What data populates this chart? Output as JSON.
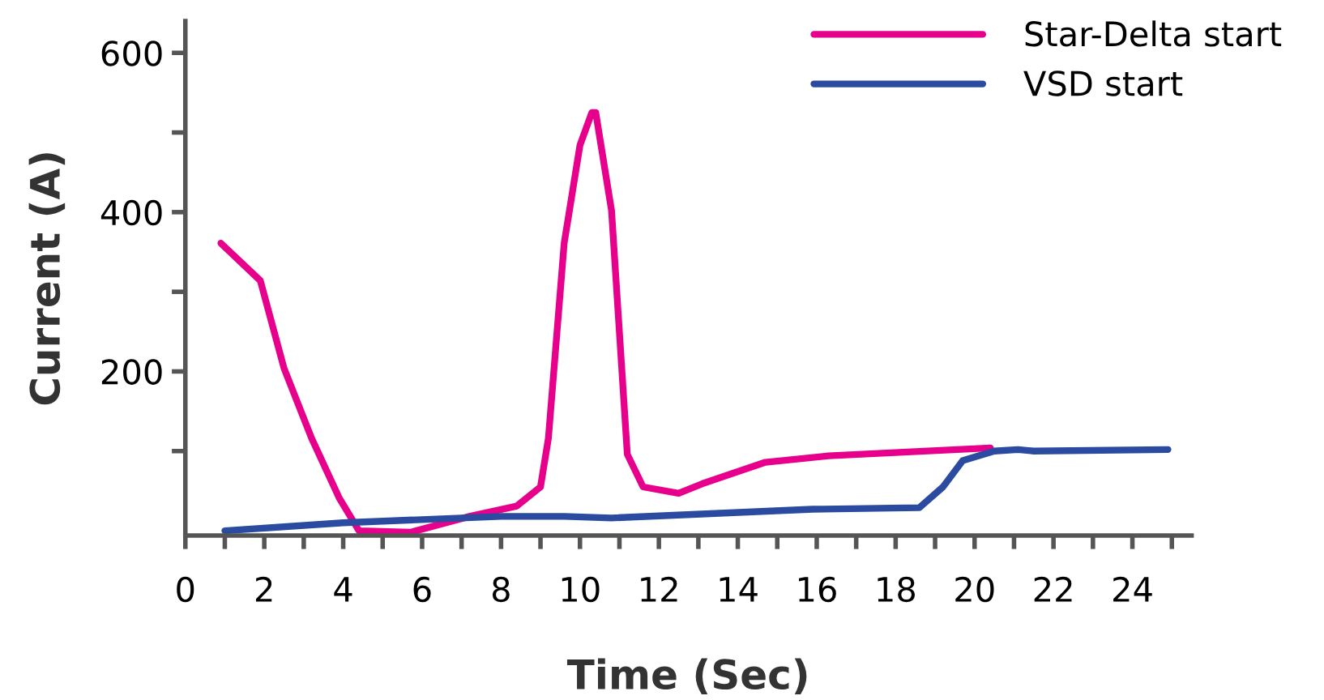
{
  "chart_data": {
    "type": "line",
    "xlabel": "Time (Sec)",
    "ylabel": "Current (A)",
    "xlim": [
      0,
      25.5
    ],
    "ylim": [
      -6,
      640
    ],
    "xticks": [
      0,
      {
        "value": 1,
        "label": null
      },
      2,
      {
        "value": 3,
        "label": null
      },
      4,
      {
        "value": 5,
        "label": null
      },
      6,
      {
        "value": 7,
        "label": null
      },
      8,
      {
        "value": 9,
        "label": null
      },
      10,
      {
        "value": 11,
        "label": null
      },
      12,
      {
        "value": 13,
        "label": null
      },
      14,
      {
        "value": 15,
        "label": null
      },
      16,
      {
        "value": 17,
        "label": null
      },
      18,
      {
        "value": 19,
        "label": null
      },
      20,
      {
        "value": 21,
        "label": null
      },
      22,
      {
        "value": 23,
        "label": null
      },
      24,
      {
        "value": 25,
        "label": null
      }
    ],
    "yticks": [
      {
        "value": 100,
        "label": null
      },
      200,
      {
        "value": 300,
        "label": null
      },
      400,
      {
        "value": 500,
        "label": null
      },
      600
    ],
    "grid": false,
    "legend": "top right",
    "marker": "none",
    "line_style": "solid",
    "series": [
      {
        "name": "Star-Delta start",
        "color": "#e6008c",
        "x": [
          0.9,
          1.9,
          2.5,
          3.2,
          3.9,
          4.4,
          5.7,
          7.2,
          8.4,
          9.0,
          9.2,
          9.6,
          10.0,
          10.3,
          10.4,
          10.8,
          11.2,
          11.6,
          12.5,
          13.1,
          14.7,
          16.3,
          20.4
        ],
        "values": [
          361,
          314,
          204,
          116,
          41,
          0,
          -2,
          18,
          31,
          55,
          116,
          361,
          484,
          525,
          525,
          402,
          96,
          55,
          47,
          59,
          86,
          94,
          104
        ]
      },
      {
        "name": "VSD start",
        "color": "#2b4ba0",
        "x": [
          1.0,
          4.0,
          8.0,
          9.6,
          10.8,
          15.9,
          18.6,
          19.2,
          19.7,
          20.5,
          21.1,
          21.5,
          24.9
        ],
        "values": [
          0,
          10,
          18,
          18,
          16,
          27,
          29,
          55,
          88,
          100,
          102,
          100,
          102
        ]
      }
    ]
  }
}
